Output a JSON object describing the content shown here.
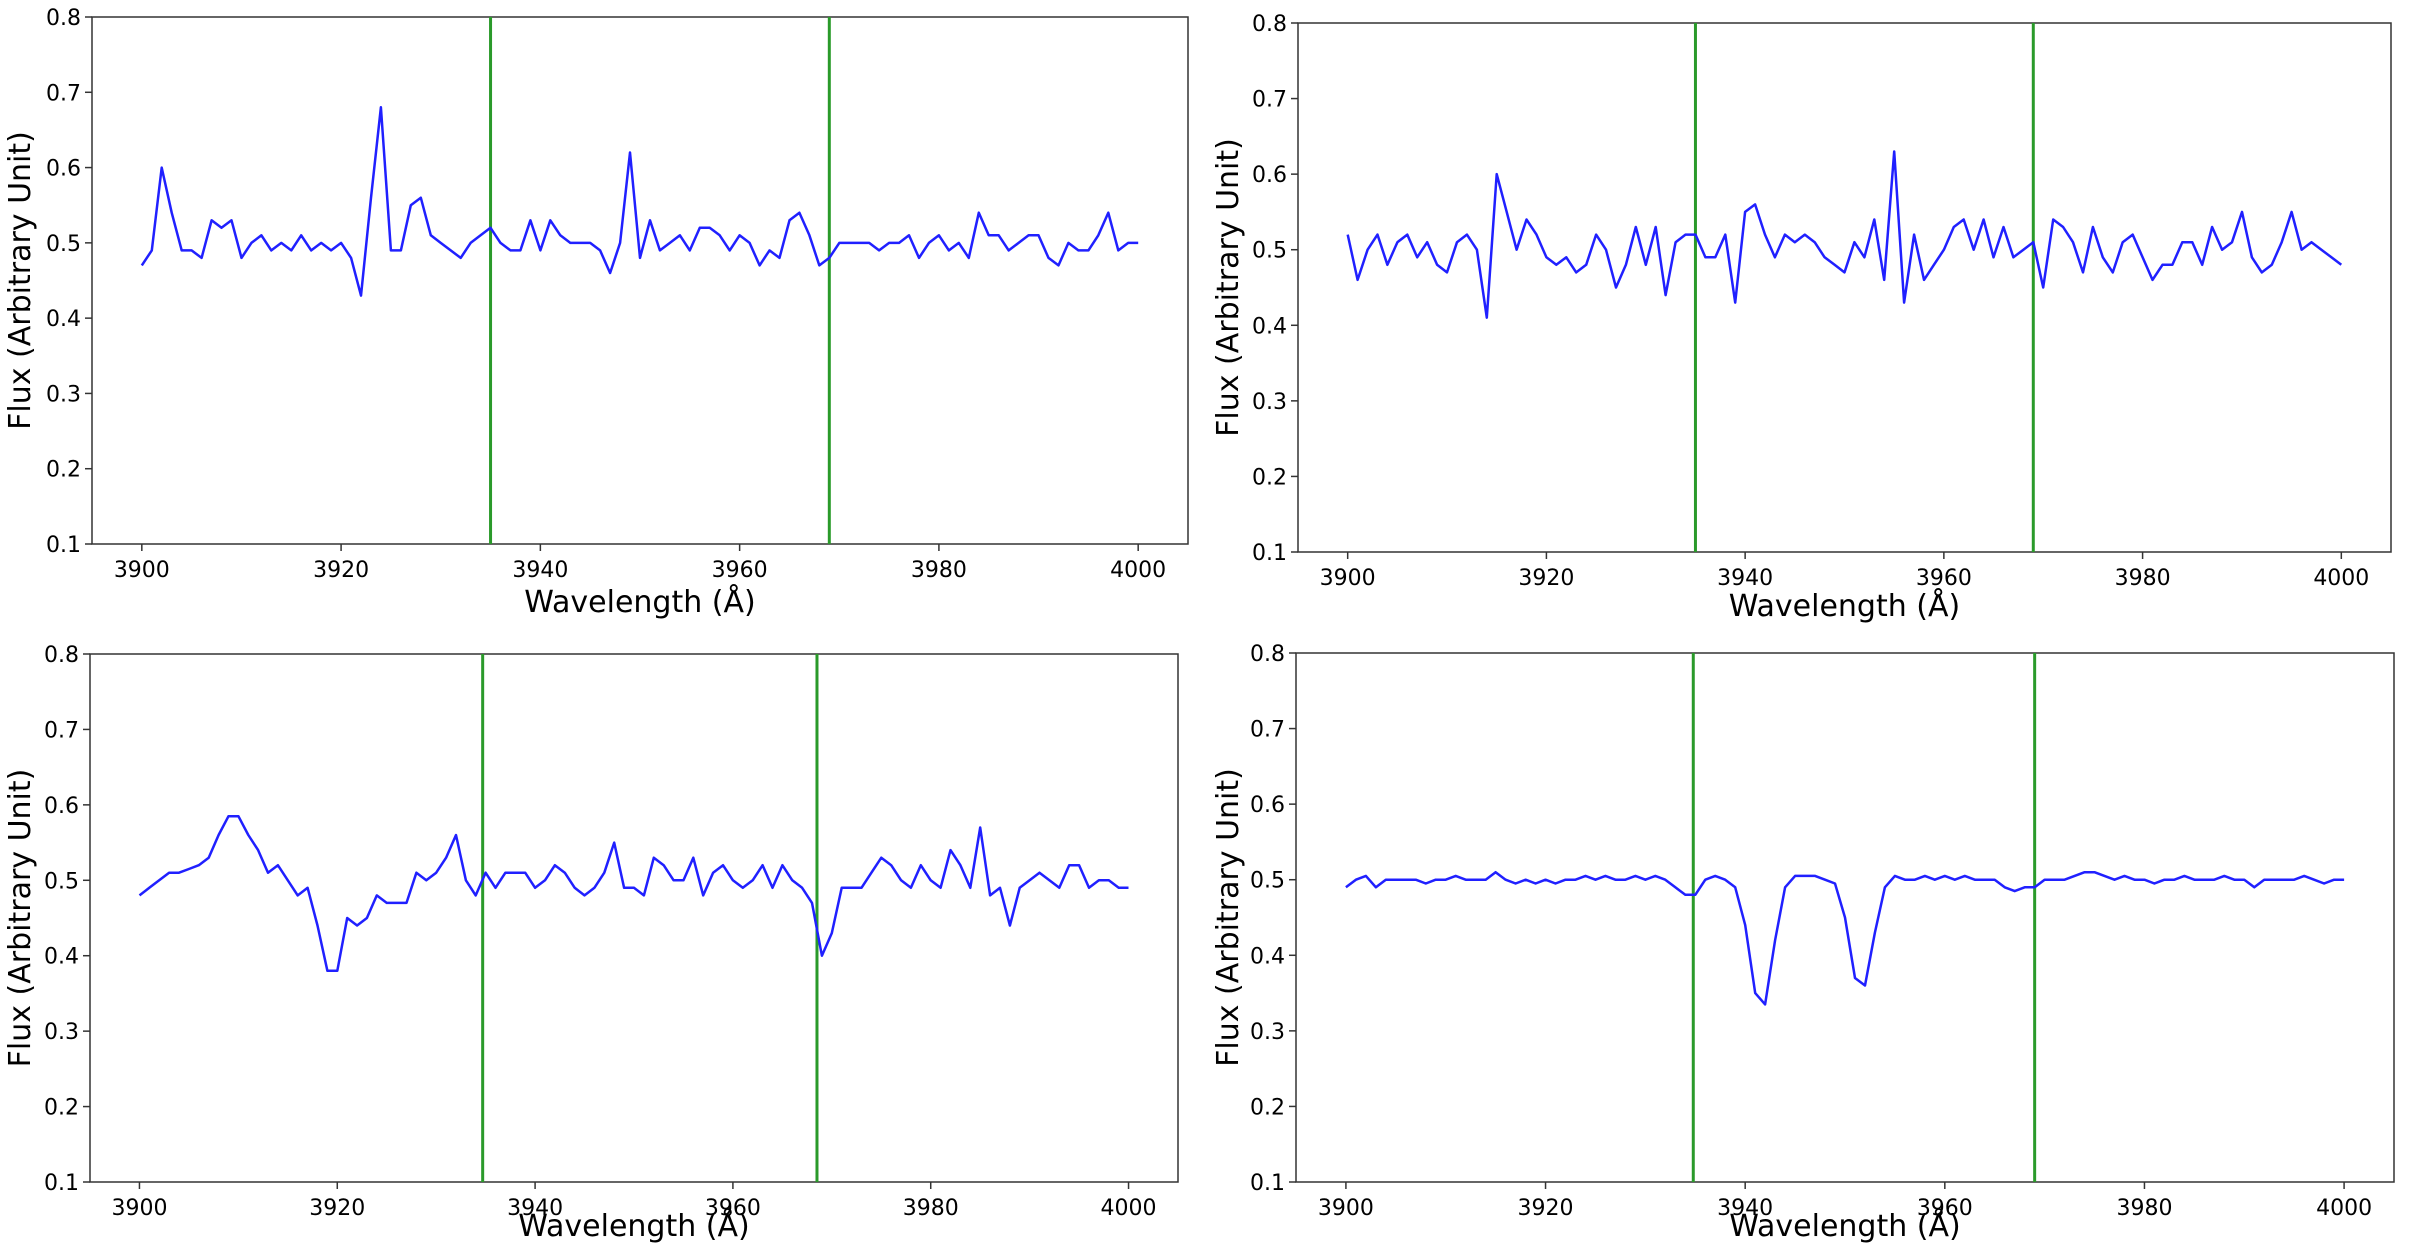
{
  "colors": {
    "spectrum": "#2020ff",
    "marker": "#2a9a2a",
    "axes": "#333333"
  },
  "chart_data": [
    {
      "type": "line",
      "xlabel": "Wavelength (Å)",
      "ylabel": "Flux (Arbitrary Unit)",
      "xlim": [
        3895,
        4005
      ],
      "ylim": [
        0.1,
        0.8
      ],
      "xticks": [
        3900,
        3920,
        3940,
        3960,
        3980,
        4000
      ],
      "yticks": [
        0.1,
        0.2,
        0.3,
        0.4,
        0.5,
        0.6,
        0.7,
        0.8
      ],
      "vlines": [
        3935,
        3969
      ],
      "series": [
        {
          "x": [
            3900,
            3901,
            3902,
            3903,
            3904,
            3905,
            3906,
            3907,
            3908,
            3909,
            3910,
            3911,
            3912,
            3913,
            3914,
            3915,
            3916,
            3917,
            3918,
            3919,
            3920,
            3921,
            3922,
            3923,
            3924,
            3925,
            3926,
            3927,
            3928,
            3929,
            3930,
            3931,
            3932,
            3933,
            3934,
            3935,
            3936,
            3937,
            3938,
            3939,
            3940,
            3941,
            3942,
            3943,
            3944,
            3945,
            3946,
            3947,
            3948,
            3949,
            3950,
            3951,
            3952,
            3953,
            3954,
            3955,
            3956,
            3957,
            3958,
            3959,
            3960,
            3961,
            3962,
            3963,
            3964,
            3965,
            3966,
            3967,
            3968,
            3969,
            3970,
            3971,
            3972,
            3973,
            3974,
            3975,
            3976,
            3977,
            3978,
            3979,
            3980,
            3981,
            3982,
            3983,
            3984,
            3985,
            3986,
            3987,
            3988,
            3989,
            3990,
            3991,
            3992,
            3993,
            3994,
            3995,
            3996,
            3997,
            3998,
            3999,
            4000
          ],
          "values": [
            0.47,
            0.49,
            0.6,
            0.54,
            0.49,
            0.49,
            0.48,
            0.53,
            0.52,
            0.53,
            0.48,
            0.5,
            0.51,
            0.49,
            0.5,
            0.49,
            0.51,
            0.49,
            0.5,
            0.49,
            0.5,
            0.48,
            0.43,
            0.56,
            0.68,
            0.49,
            0.49,
            0.55,
            0.56,
            0.51,
            0.5,
            0.49,
            0.48,
            0.5,
            0.51,
            0.52,
            0.5,
            0.49,
            0.49,
            0.53,
            0.49,
            0.53,
            0.51,
            0.5,
            0.5,
            0.5,
            0.49,
            0.46,
            0.5,
            0.62,
            0.48,
            0.53,
            0.49,
            0.5,
            0.51,
            0.49,
            0.52,
            0.52,
            0.51,
            0.49,
            0.51,
            0.5,
            0.47,
            0.49,
            0.48,
            0.53,
            0.54,
            0.51,
            0.47,
            0.48,
            0.5,
            0.5,
            0.5,
            0.5,
            0.49,
            0.5,
            0.5,
            0.51,
            0.48,
            0.5,
            0.51,
            0.49,
            0.5,
            0.48,
            0.54,
            0.51,
            0.51,
            0.49,
            0.5,
            0.51,
            0.51,
            0.48,
            0.47,
            0.5,
            0.49,
            0.49,
            0.51,
            0.54,
            0.49,
            0.5,
            0.5
          ]
        }
      ]
    },
    {
      "type": "line",
      "xlabel": "Wavelength (Å)",
      "ylabel": "Flux (Arbitrary Unit)",
      "xlim": [
        3895,
        4005
      ],
      "ylim": [
        0.1,
        0.8
      ],
      "xticks": [
        3900,
        3920,
        3940,
        3960,
        3980,
        4000
      ],
      "yticks": [
        0.1,
        0.2,
        0.3,
        0.4,
        0.5,
        0.6,
        0.7,
        0.8
      ],
      "vlines": [
        3935,
        3969
      ],
      "series": [
        {
          "x": [
            3900,
            3901,
            3902,
            3903,
            3904,
            3905,
            3906,
            3907,
            3908,
            3909,
            3910,
            3911,
            3912,
            3913,
            3914,
            3915,
            3916,
            3917,
            3918,
            3919,
            3920,
            3921,
            3922,
            3923,
            3924,
            3925,
            3926,
            3927,
            3928,
            3929,
            3930,
            3931,
            3932,
            3933,
            3934,
            3935,
            3936,
            3937,
            3938,
            3939,
            3940,
            3941,
            3942,
            3943,
            3944,
            3945,
            3946,
            3947,
            3948,
            3949,
            3950,
            3951,
            3952,
            3953,
            3954,
            3955,
            3956,
            3957,
            3958,
            3959,
            3960,
            3961,
            3962,
            3963,
            3964,
            3965,
            3966,
            3967,
            3968,
            3969,
            3970,
            3971,
            3972,
            3973,
            3974,
            3975,
            3976,
            3977,
            3978,
            3979,
            3980,
            3981,
            3982,
            3983,
            3984,
            3985,
            3986,
            3987,
            3988,
            3989,
            3990,
            3991,
            3992,
            3993,
            3994,
            3995,
            3996,
            3997,
            3998,
            3999,
            4000
          ],
          "values": [
            0.52,
            0.46,
            0.5,
            0.52,
            0.48,
            0.51,
            0.52,
            0.49,
            0.51,
            0.48,
            0.47,
            0.51,
            0.52,
            0.5,
            0.41,
            0.6,
            0.55,
            0.5,
            0.54,
            0.52,
            0.49,
            0.48,
            0.49,
            0.47,
            0.48,
            0.52,
            0.5,
            0.45,
            0.48,
            0.53,
            0.48,
            0.53,
            0.44,
            0.51,
            0.52,
            0.52,
            0.49,
            0.49,
            0.52,
            0.43,
            0.55,
            0.56,
            0.52,
            0.49,
            0.52,
            0.51,
            0.52,
            0.51,
            0.49,
            0.48,
            0.47,
            0.51,
            0.49,
            0.54,
            0.46,
            0.63,
            0.43,
            0.52,
            0.46,
            0.48,
            0.5,
            0.53,
            0.54,
            0.5,
            0.54,
            0.49,
            0.53,
            0.49,
            0.5,
            0.51,
            0.45,
            0.54,
            0.53,
            0.51,
            0.47,
            0.53,
            0.49,
            0.47,
            0.51,
            0.52,
            0.49,
            0.46,
            0.48,
            0.48,
            0.51,
            0.51,
            0.48,
            0.53,
            0.5,
            0.51,
            0.55,
            0.49,
            0.47,
            0.48,
            0.51,
            0.55,
            0.5,
            0.51,
            0.5,
            0.49,
            0.48
          ]
        }
      ]
    },
    {
      "type": "line",
      "xlabel": "Wavelength (Å)",
      "ylabel": "Flux (Arbitrary Unit)",
      "xlim": [
        3895,
        4005
      ],
      "ylim": [
        0.1,
        0.8
      ],
      "xticks": [
        3900,
        3920,
        3940,
        3960,
        3980,
        4000
      ],
      "yticks": [
        0.1,
        0.2,
        0.3,
        0.4,
        0.5,
        0.6,
        0.7,
        0.8
      ],
      "vlines": [
        3934.7,
        3968.5
      ],
      "series": [
        {
          "x": [
            3900,
            3901,
            3902,
            3903,
            3904,
            3905,
            3906,
            3907,
            3908,
            3909,
            3910,
            3911,
            3912,
            3913,
            3914,
            3915,
            3916,
            3917,
            3918,
            3919,
            3920,
            3921,
            3922,
            3923,
            3924,
            3925,
            3926,
            3927,
            3928,
            3929,
            3930,
            3931,
            3932,
            3933,
            3934,
            3935,
            3936,
            3937,
            3938,
            3939,
            3940,
            3941,
            3942,
            3943,
            3944,
            3945,
            3946,
            3947,
            3948,
            3949,
            3950,
            3951,
            3952,
            3953,
            3954,
            3955,
            3956,
            3957,
            3958,
            3959,
            3960,
            3961,
            3962,
            3963,
            3964,
            3965,
            3966,
            3967,
            3968,
            3969,
            3970,
            3971,
            3972,
            3973,
            3974,
            3975,
            3976,
            3977,
            3978,
            3979,
            3980,
            3981,
            3982,
            3983,
            3984,
            3985,
            3986,
            3987,
            3988,
            3989,
            3990,
            3991,
            3992,
            3993,
            3994,
            3995,
            3996,
            3997,
            3998,
            3999,
            4000
          ],
          "values": [
            0.48,
            0.49,
            0.5,
            0.51,
            0.51,
            0.515,
            0.52,
            0.53,
            0.56,
            0.585,
            0.585,
            0.56,
            0.54,
            0.51,
            0.52,
            0.5,
            0.48,
            0.49,
            0.44,
            0.38,
            0.38,
            0.45,
            0.44,
            0.45,
            0.48,
            0.47,
            0.47,
            0.47,
            0.51,
            0.5,
            0.51,
            0.53,
            0.56,
            0.5,
            0.48,
            0.51,
            0.49,
            0.51,
            0.51,
            0.51,
            0.49,
            0.5,
            0.52,
            0.51,
            0.49,
            0.48,
            0.49,
            0.51,
            0.55,
            0.49,
            0.49,
            0.48,
            0.53,
            0.52,
            0.5,
            0.5,
            0.53,
            0.48,
            0.51,
            0.52,
            0.5,
            0.49,
            0.5,
            0.52,
            0.49,
            0.52,
            0.5,
            0.49,
            0.47,
            0.4,
            0.43,
            0.49,
            0.49,
            0.49,
            0.51,
            0.53,
            0.52,
            0.5,
            0.49,
            0.52,
            0.5,
            0.49,
            0.54,
            0.52,
            0.49,
            0.57,
            0.48,
            0.49,
            0.44,
            0.49,
            0.5,
            0.51,
            0.5,
            0.49,
            0.52,
            0.52,
            0.49,
            0.5,
            0.5,
            0.49,
            0.49
          ]
        }
      ]
    },
    {
      "type": "line",
      "xlabel": "Wavelength (Å)",
      "ylabel": "Flux (Arbitrary Unit)",
      "xlim": [
        3895,
        4005
      ],
      "ylim": [
        0.1,
        0.8
      ],
      "xticks": [
        3900,
        3920,
        3940,
        3960,
        3980,
        4000
      ],
      "yticks": [
        0.1,
        0.2,
        0.3,
        0.4,
        0.5,
        0.6,
        0.7,
        0.8
      ],
      "vlines": [
        3934.8,
        3969
      ],
      "series": [
        {
          "x": [
            3900,
            3901,
            3902,
            3903,
            3904,
            3905,
            3906,
            3907,
            3908,
            3909,
            3910,
            3911,
            3912,
            3913,
            3914,
            3915,
            3916,
            3917,
            3918,
            3919,
            3920,
            3921,
            3922,
            3923,
            3924,
            3925,
            3926,
            3927,
            3928,
            3929,
            3930,
            3931,
            3932,
            3933,
            3934,
            3935,
            3936,
            3937,
            3938,
            3939,
            3940,
            3941,
            3942,
            3943,
            3944,
            3945,
            3946,
            3947,
            3948,
            3949,
            3950,
            3951,
            3952,
            3953,
            3954,
            3955,
            3956,
            3957,
            3958,
            3959,
            3960,
            3961,
            3962,
            3963,
            3964,
            3965,
            3966,
            3967,
            3968,
            3969,
            3970,
            3971,
            3972,
            3973,
            3974,
            3975,
            3976,
            3977,
            3978,
            3979,
            3980,
            3981,
            3982,
            3983,
            3984,
            3985,
            3986,
            3987,
            3988,
            3989,
            3990,
            3991,
            3992,
            3993,
            3994,
            3995,
            3996,
            3997,
            3998,
            3999,
            4000
          ],
          "values": [
            0.49,
            0.5,
            0.505,
            0.49,
            0.5,
            0.5,
            0.5,
            0.5,
            0.495,
            0.5,
            0.5,
            0.505,
            0.5,
            0.5,
            0.5,
            0.51,
            0.5,
            0.495,
            0.5,
            0.495,
            0.5,
            0.495,
            0.5,
            0.5,
            0.505,
            0.5,
            0.505,
            0.5,
            0.5,
            0.505,
            0.5,
            0.505,
            0.5,
            0.49,
            0.48,
            0.48,
            0.5,
            0.505,
            0.5,
            0.49,
            0.44,
            0.35,
            0.335,
            0.42,
            0.49,
            0.505,
            0.505,
            0.505,
            0.5,
            0.495,
            0.45,
            0.37,
            0.36,
            0.43,
            0.49,
            0.505,
            0.5,
            0.5,
            0.505,
            0.5,
            0.505,
            0.5,
            0.505,
            0.5,
            0.5,
            0.5,
            0.49,
            0.485,
            0.49,
            0.49,
            0.5,
            0.5,
            0.5,
            0.505,
            0.51,
            0.51,
            0.505,
            0.5,
            0.505,
            0.5,
            0.5,
            0.495,
            0.5,
            0.5,
            0.505,
            0.5,
            0.5,
            0.5,
            0.505,
            0.5,
            0.5,
            0.49,
            0.5,
            0.5,
            0.5,
            0.5,
            0.505,
            0.5,
            0.495,
            0.5,
            0.5
          ]
        }
      ]
    }
  ]
}
